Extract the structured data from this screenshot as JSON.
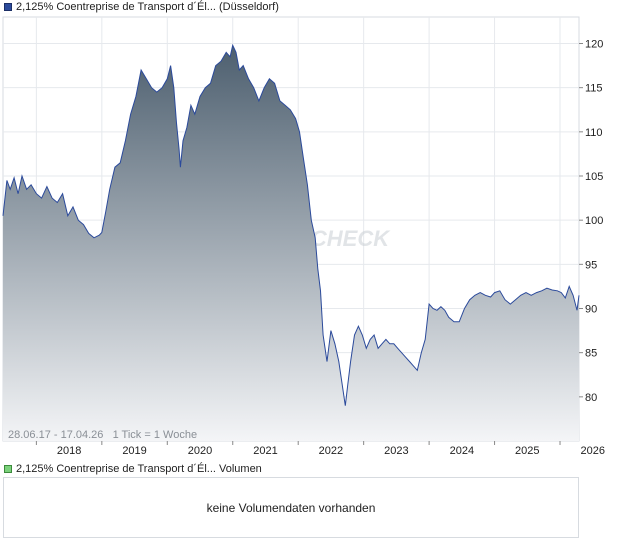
{
  "price_legend": {
    "label": "2,125% Coentreprise de Transport d´Él... (Düsseldorf)",
    "color": "#2b4a9b"
  },
  "volume_legend": {
    "label": "2,125% Coentreprise de Transport d´Él... Volumen",
    "color": "#7bd17b"
  },
  "volume_message": "keine Volumendaten vorhanden",
  "info_text": "28.06.17 - 17.04.26   1 Tick = 1 Woche",
  "watermark": "CHECK",
  "chart_data": {
    "type": "area",
    "title": "2,125% Coentreprise de Transport d´Él... (Düsseldorf)",
    "xlabel": "",
    "ylabel": "",
    "x_ticks": [
      "2018",
      "2019",
      "2020",
      "2021",
      "2022",
      "2023",
      "2024",
      "2025",
      "2026"
    ],
    "y_ticks": [
      80,
      85,
      90,
      95,
      100,
      105,
      110,
      115,
      120
    ],
    "xlim": [
      2017.49,
      2026.29
    ],
    "ylim": [
      75,
      123
    ],
    "grid": true,
    "line_color": "#2b4a9b",
    "fill_top_color": "#4d5f6f",
    "fill_bottom_color": "#f4f5f7",
    "series": [
      {
        "name": "2,125% Coentreprise de Transport d´Él... (Düsseldorf)",
        "x": [
          2017.49,
          2017.55,
          2017.6,
          2017.66,
          2017.72,
          2017.78,
          2017.85,
          2017.92,
          2018.0,
          2018.08,
          2018.16,
          2018.24,
          2018.32,
          2018.4,
          2018.48,
          2018.56,
          2018.64,
          2018.72,
          2018.8,
          2018.88,
          2018.96,
          2019.0,
          2019.06,
          2019.12,
          2019.2,
          2019.28,
          2019.36,
          2019.44,
          2019.52,
          2019.6,
          2019.68,
          2019.76,
          2019.84,
          2019.92,
          2020.0,
          2020.05,
          2020.1,
          2020.14,
          2020.18,
          2020.2,
          2020.24,
          2020.3,
          2020.36,
          2020.42,
          2020.5,
          2020.58,
          2020.66,
          2020.74,
          2020.82,
          2020.9,
          2020.96,
          2021.0,
          2021.05,
          2021.1,
          2021.16,
          2021.24,
          2021.32,
          2021.4,
          2021.48,
          2021.56,
          2021.64,
          2021.72,
          2021.8,
          2021.88,
          2021.96,
          2022.02,
          2022.08,
          2022.14,
          2022.2,
          2022.26,
          2022.3,
          2022.34,
          2022.38,
          2022.44,
          2022.5,
          2022.56,
          2022.62,
          2022.68,
          2022.72,
          2022.76,
          2022.8,
          2022.86,
          2022.92,
          2022.98,
          2023.04,
          2023.1,
          2023.16,
          2023.22,
          2023.28,
          2023.34,
          2023.4,
          2023.46,
          2023.52,
          2023.58,
          2023.64,
          2023.7,
          2023.76,
          2023.82,
          2023.88,
          2023.94,
          2024.0,
          2024.06,
          2024.12,
          2024.18,
          2024.24,
          2024.3,
          2024.38,
          2024.46,
          2024.54,
          2024.62,
          2024.7,
          2024.78,
          2024.86,
          2024.94,
          2025.0,
          2025.08,
          2025.16,
          2025.24,
          2025.32,
          2025.4,
          2025.48,
          2025.56,
          2025.64,
          2025.72,
          2025.8,
          2025.88,
          2025.96,
          2026.02,
          2026.08,
          2026.14,
          2026.2,
          2026.26,
          2026.29
        ],
        "values": [
          100.5,
          104.5,
          103.5,
          104.8,
          103,
          105,
          103.5,
          104,
          103,
          102.5,
          103.8,
          102.5,
          102,
          103,
          100.5,
          101.5,
          100,
          99.5,
          98.5,
          98,
          98.3,
          98.6,
          101,
          103.5,
          106,
          106.5,
          109,
          112,
          114,
          117,
          116,
          115,
          114.5,
          115,
          116,
          117.5,
          115,
          111,
          108,
          106,
          109,
          110.5,
          113,
          112,
          114,
          115,
          115.5,
          117.5,
          118,
          119,
          118.5,
          119.8,
          119,
          117,
          117.5,
          116,
          115,
          113.5,
          115,
          116,
          115.5,
          113.5,
          113,
          112.5,
          111.5,
          110,
          107,
          104,
          100,
          98,
          94.5,
          92,
          87,
          84,
          87.5,
          86,
          84,
          81,
          79,
          81.5,
          84,
          87,
          88,
          87,
          85.5,
          86.5,
          87,
          85.5,
          86,
          86.5,
          86,
          86,
          85.5,
          85,
          84.5,
          84,
          83.5,
          83,
          85,
          86.5,
          90.5,
          90,
          89.8,
          90.2,
          89.8,
          89,
          88.5,
          88.5,
          90,
          91,
          91.5,
          91.8,
          91.5,
          91.3,
          91.8,
          92,
          91,
          90.5,
          91,
          91.5,
          91.8,
          91.5,
          91.8,
          92,
          92.3,
          92.1,
          92,
          91.8,
          91.2,
          92.5,
          91.5,
          89.8,
          91.5
        ]
      }
    ]
  }
}
